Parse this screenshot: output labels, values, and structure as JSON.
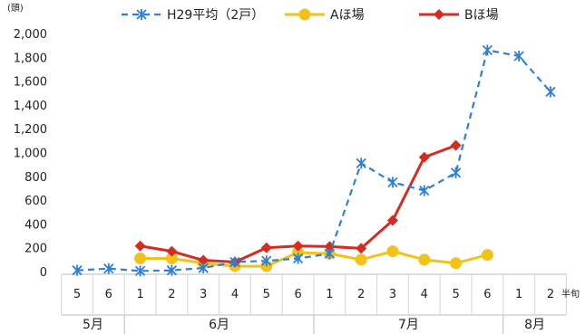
{
  "chart_data": {
    "type": "line",
    "y_unit": "(頭)",
    "x_unit": "半旬",
    "ylim": [
      0,
      2000
    ],
    "y_ticks": [
      "0",
      "200",
      "400",
      "600",
      "800",
      "1,000",
      "1,200",
      "1,400",
      "1,600",
      "1,800",
      "2,000"
    ],
    "categories": [
      "5",
      "6",
      "1",
      "2",
      "3",
      "4",
      "5",
      "6",
      "1",
      "2",
      "3",
      "4",
      "5",
      "6",
      "1",
      "2"
    ],
    "months": [
      {
        "label": "5月",
        "start": 0,
        "end": 1
      },
      {
        "label": "6月",
        "start": 2,
        "end": 7
      },
      {
        "label": "7月",
        "start": 8,
        "end": 13
      },
      {
        "label": "8月",
        "start": 14,
        "end": 15
      }
    ],
    "legend_position": "top",
    "series": [
      {
        "name": "H29平均（2戸）",
        "color": "#2f7fd6",
        "style": "dashed",
        "marker": "asterisk",
        "values": [
          10,
          25,
          5,
          10,
          30,
          80,
          90,
          110,
          150,
          910,
          750,
          680,
          830,
          1860,
          1810,
          1510
        ]
      },
      {
        "name": "Aほ場",
        "color": "#f2c21b",
        "style": "solid",
        "marker": "circle",
        "values": [
          null,
          null,
          110,
          110,
          70,
          45,
          45,
          160,
          150,
          100,
          170,
          100,
          70,
          140,
          null,
          null
        ]
      },
      {
        "name": "Bほ場",
        "color": "#d42b22",
        "style": "solid",
        "marker": "diamond",
        "values": [
          null,
          null,
          215,
          170,
          95,
          80,
          200,
          215,
          210,
          195,
          430,
          960,
          1060,
          null,
          null,
          null
        ]
      }
    ]
  }
}
